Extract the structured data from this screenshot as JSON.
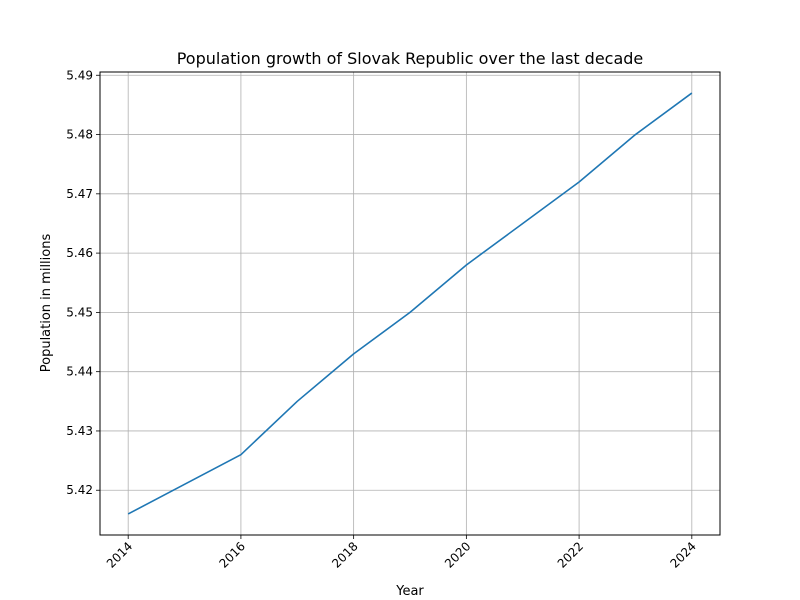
{
  "chart_data": {
    "type": "line",
    "title": "Population growth of Slovak Republic over the last decade",
    "xlabel": "Year",
    "ylabel": "Population in millions",
    "x": [
      2014,
      2015,
      2016,
      2017,
      2018,
      2019,
      2020,
      2021,
      2022,
      2023,
      2024
    ],
    "series": [
      {
        "values": [
          5.416,
          5.421,
          5.426,
          5.435,
          5.443,
          5.45,
          5.458,
          5.465,
          5.472,
          5.48,
          5.487
        ],
        "color": "#1f77b4"
      }
    ],
    "xlim": [
      2013.5,
      2024.5
    ],
    "ylim": [
      5.41245,
      5.49055
    ],
    "x_ticks": [
      2014,
      2016,
      2018,
      2020,
      2022,
      2024
    ],
    "y_ticks": [
      5.42,
      5.43,
      5.44,
      5.45,
      5.46,
      5.47,
      5.48,
      5.49
    ],
    "x_tick_labels": [
      "2014",
      "2016",
      "2018",
      "2020",
      "2022",
      "2024"
    ],
    "y_tick_labels": [
      "5.42",
      "5.43",
      "5.44",
      "5.45",
      "5.46",
      "5.47",
      "5.48",
      "5.49"
    ],
    "grid": true,
    "legend": "none"
  }
}
